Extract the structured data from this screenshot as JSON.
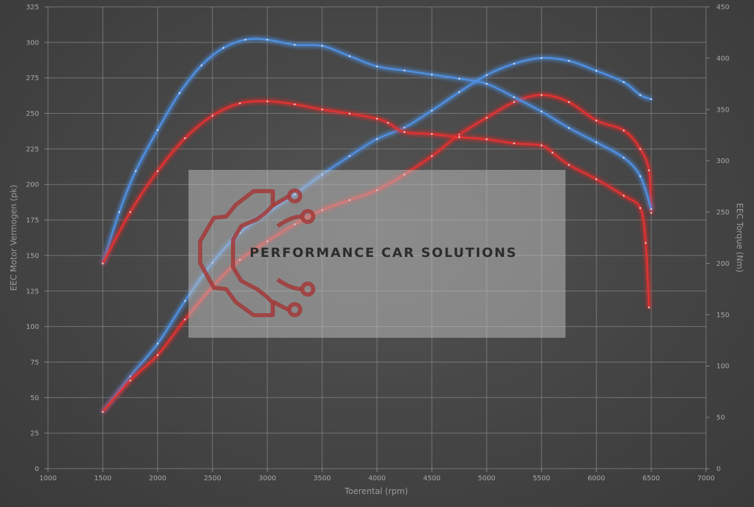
{
  "chart_data": {
    "type": "line",
    "xlabel": "Toerental (rpm)",
    "ylabel_left": "EEC Motor Vermogen (pk)",
    "ylabel_right": "EEC Torque (Nm)",
    "x_range": [
      1000,
      7000
    ],
    "x_ticks": [
      1000,
      1500,
      2000,
      2500,
      3000,
      3500,
      4000,
      4500,
      5000,
      5500,
      6000,
      6500,
      7000
    ],
    "y_left_range": [
      0,
      325
    ],
    "y_left_ticks": [
      0,
      25,
      50,
      75,
      100,
      125,
      150,
      175,
      200,
      225,
      250,
      275,
      300,
      325
    ],
    "y_right_range": [
      0,
      450
    ],
    "y_right_ticks": [
      0,
      50,
      100,
      150,
      200,
      250,
      300,
      350,
      400,
      450
    ],
    "grid": true,
    "colors": {
      "tuned": "#4f8fe0",
      "stock": "#e03030"
    },
    "series": [
      {
        "axis": "left",
        "color": "#4f8fe0",
        "x": [
          1500,
          1750,
          2000,
          2250,
          2500,
          2750,
          3000,
          3250,
          3500,
          3750,
          4000,
          4250,
          4500,
          4750,
          5000,
          5250,
          5500,
          5750,
          6000,
          6250,
          6400,
          6500
        ],
        "y": [
          40,
          65,
          88,
          118,
          145,
          166,
          180,
          193,
          207,
          220,
          232,
          240,
          252,
          265,
          277,
          285,
          289,
          287,
          280,
          272,
          263,
          260
        ]
      },
      {
        "axis": "left",
        "color": "#e03030",
        "x": [
          1500,
          1750,
          2000,
          2250,
          2500,
          2750,
          3000,
          3250,
          3500,
          3750,
          4000,
          4250,
          4500,
          4750,
          5000,
          5250,
          5500,
          5750,
          6000,
          6250,
          6400,
          6480,
          6500
        ],
        "y": [
          40,
          62,
          80,
          105,
          128,
          147,
          160,
          172,
          182,
          189,
          196,
          207,
          220,
          235,
          247,
          258,
          263,
          258,
          245,
          238,
          225,
          210,
          180
        ]
      },
      {
        "axis": "right",
        "color": "#4f8fe0",
        "x": [
          1500,
          1650,
          1800,
          2000,
          2200,
          2400,
          2600,
          2800,
          3000,
          3250,
          3500,
          3750,
          4000,
          4250,
          4500,
          4750,
          5000,
          5250,
          5500,
          5750,
          6000,
          6250,
          6400,
          6500
        ],
        "y": [
          200,
          250,
          290,
          330,
          366,
          393,
          410,
          418,
          418,
          413,
          412,
          402,
          392,
          388,
          384,
          380,
          375,
          362,
          348,
          332,
          318,
          303,
          285,
          253
        ]
      },
      {
        "axis": "right",
        "color": "#e03030",
        "x": [
          1500,
          1750,
          2000,
          2250,
          2500,
          2750,
          3000,
          3250,
          3500,
          3750,
          4000,
          4100,
          4250,
          4500,
          4750,
          5000,
          5250,
          5500,
          5600,
          5750,
          6000,
          6250,
          6400,
          6450,
          6480
        ],
        "y": [
          200,
          250,
          290,
          322,
          344,
          356,
          358,
          355,
          350,
          346,
          341,
          337,
          328,
          326,
          323,
          321,
          317,
          315,
          308,
          296,
          282,
          266,
          254,
          220,
          157
        ]
      }
    ]
  },
  "watermark": {
    "text": "PERFORMANCE CAR SOLUTIONS",
    "logo": "gear-circuit-logo"
  }
}
